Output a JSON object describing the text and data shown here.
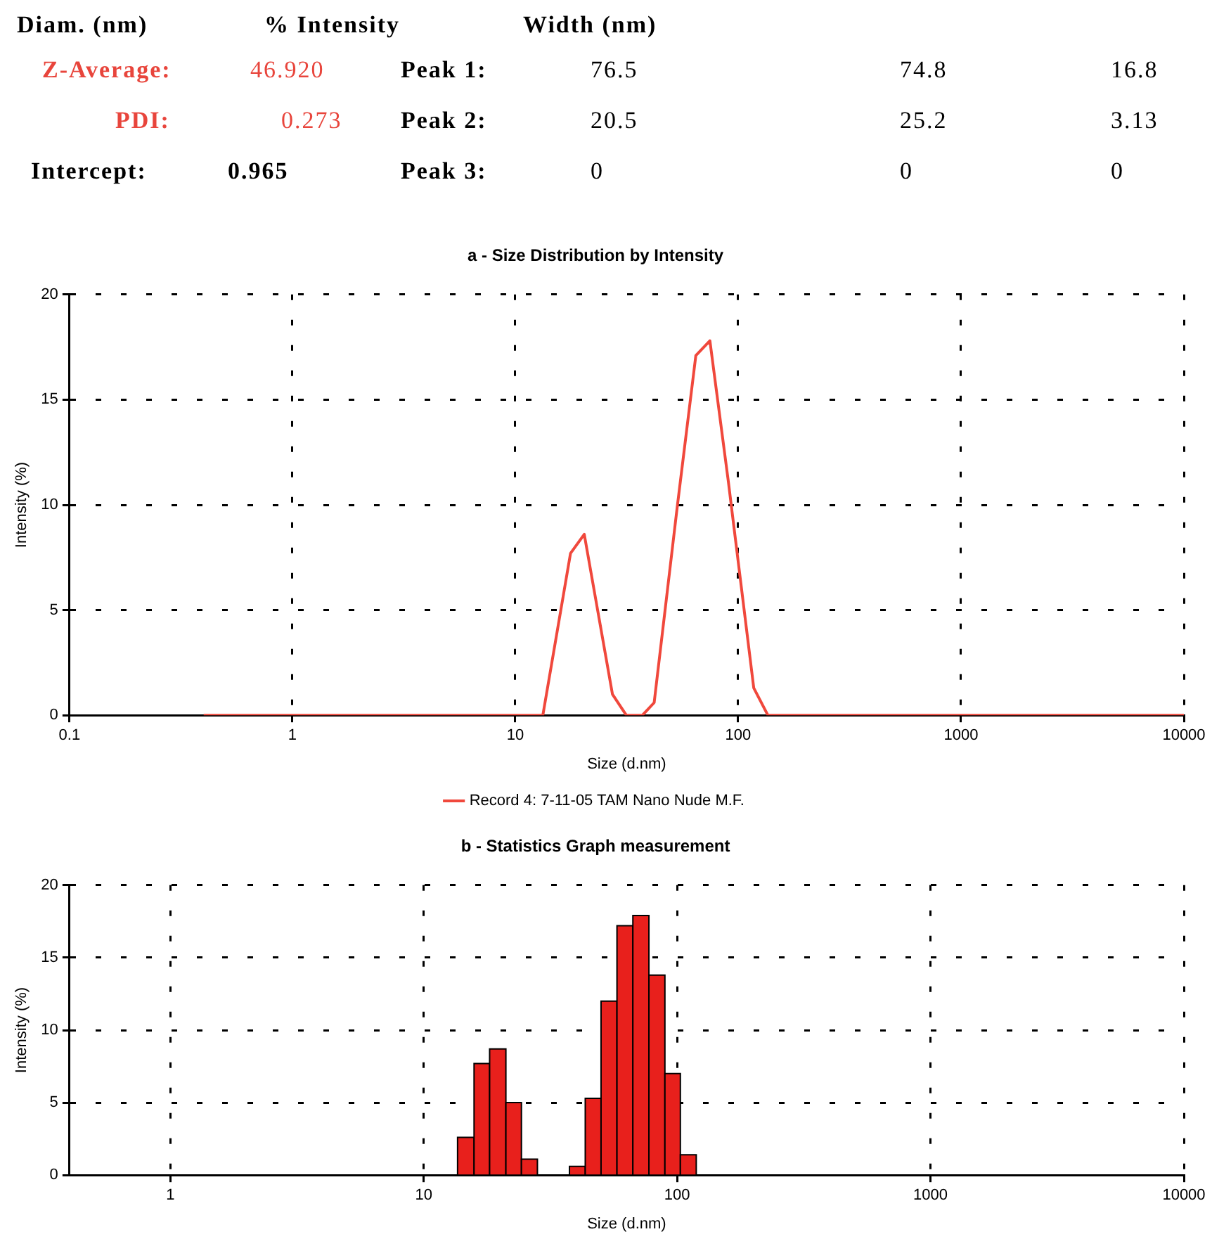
{
  "chart_data": [
    {
      "type": "other",
      "annotations": [
        "Diam. (nm)",
        "% Intensity",
        "Width (nm)",
        "Z-Average:",
        "46.920",
        "Peak 1:",
        "76.5",
        "74.8",
        "16.8",
        "PDI:",
        "0.273",
        "Peak 2:",
        "20.5",
        "25.2",
        "3.13",
        "Intercept:",
        "0.965",
        "Peak 3:",
        "0",
        "0",
        "0"
      ]
    },
    {
      "type": "line",
      "title": "a - Size Distribution by Intensity",
      "xlabel": "Size (d.nm)",
      "ylabel": "Intensity (%)",
      "log": "x",
      "xlim": [
        0.1,
        10000
      ],
      "xticks": [
        0.1,
        1,
        10,
        100,
        1000,
        10000
      ],
      "ylim": [
        0,
        20
      ],
      "yticks": [
        0,
        5,
        10,
        15,
        20
      ],
      "grid": true,
      "legend": "bottom",
      "x": [
        0.4,
        13.3,
        17.7,
        20.4,
        27.3,
        31.5,
        37.2,
        42,
        53.3,
        64.6,
        74.7,
        90.4,
        117.5,
        136,
        10000
      ],
      "series": [
        {
          "name": "Record 4: 7-11-05 TAM Nano Nude M.F.",
          "color": "#f0483c",
          "values": [
            0,
            0,
            7.7,
            8.6,
            1.0,
            0,
            0,
            0.6,
            9.9,
            17.1,
            17.8,
            11.1,
            1.3,
            0,
            0
          ]
        }
      ]
    },
    {
      "type": "histogram",
      "title": "b - Statistics Graph measurement",
      "xlabel": "Size (d.nm)",
      "ylabel": "Intensity (%)",
      "log": "x",
      "xlim": [
        0.4,
        10000
      ],
      "xticks": [
        1,
        10,
        100,
        1000,
        10000
      ],
      "ylim": [
        0,
        20
      ],
      "yticks": [
        0,
        5,
        10,
        15,
        20
      ],
      "grid": true,
      "color": "#e8201c",
      "bins": [
        13.6,
        15.8,
        18.2,
        21.1,
        24.3,
        28.1,
        37.6,
        43.4,
        50.1,
        57.9,
        66.9,
        77.4,
        89.5,
        103,
        119
      ],
      "values": [
        2.6,
        7.7,
        8.7,
        5.0,
        1.1,
        0,
        0.6,
        5.3,
        12.0,
        17.2,
        17.9,
        13.8,
        7.0,
        1.4
      ]
    }
  ]
}
